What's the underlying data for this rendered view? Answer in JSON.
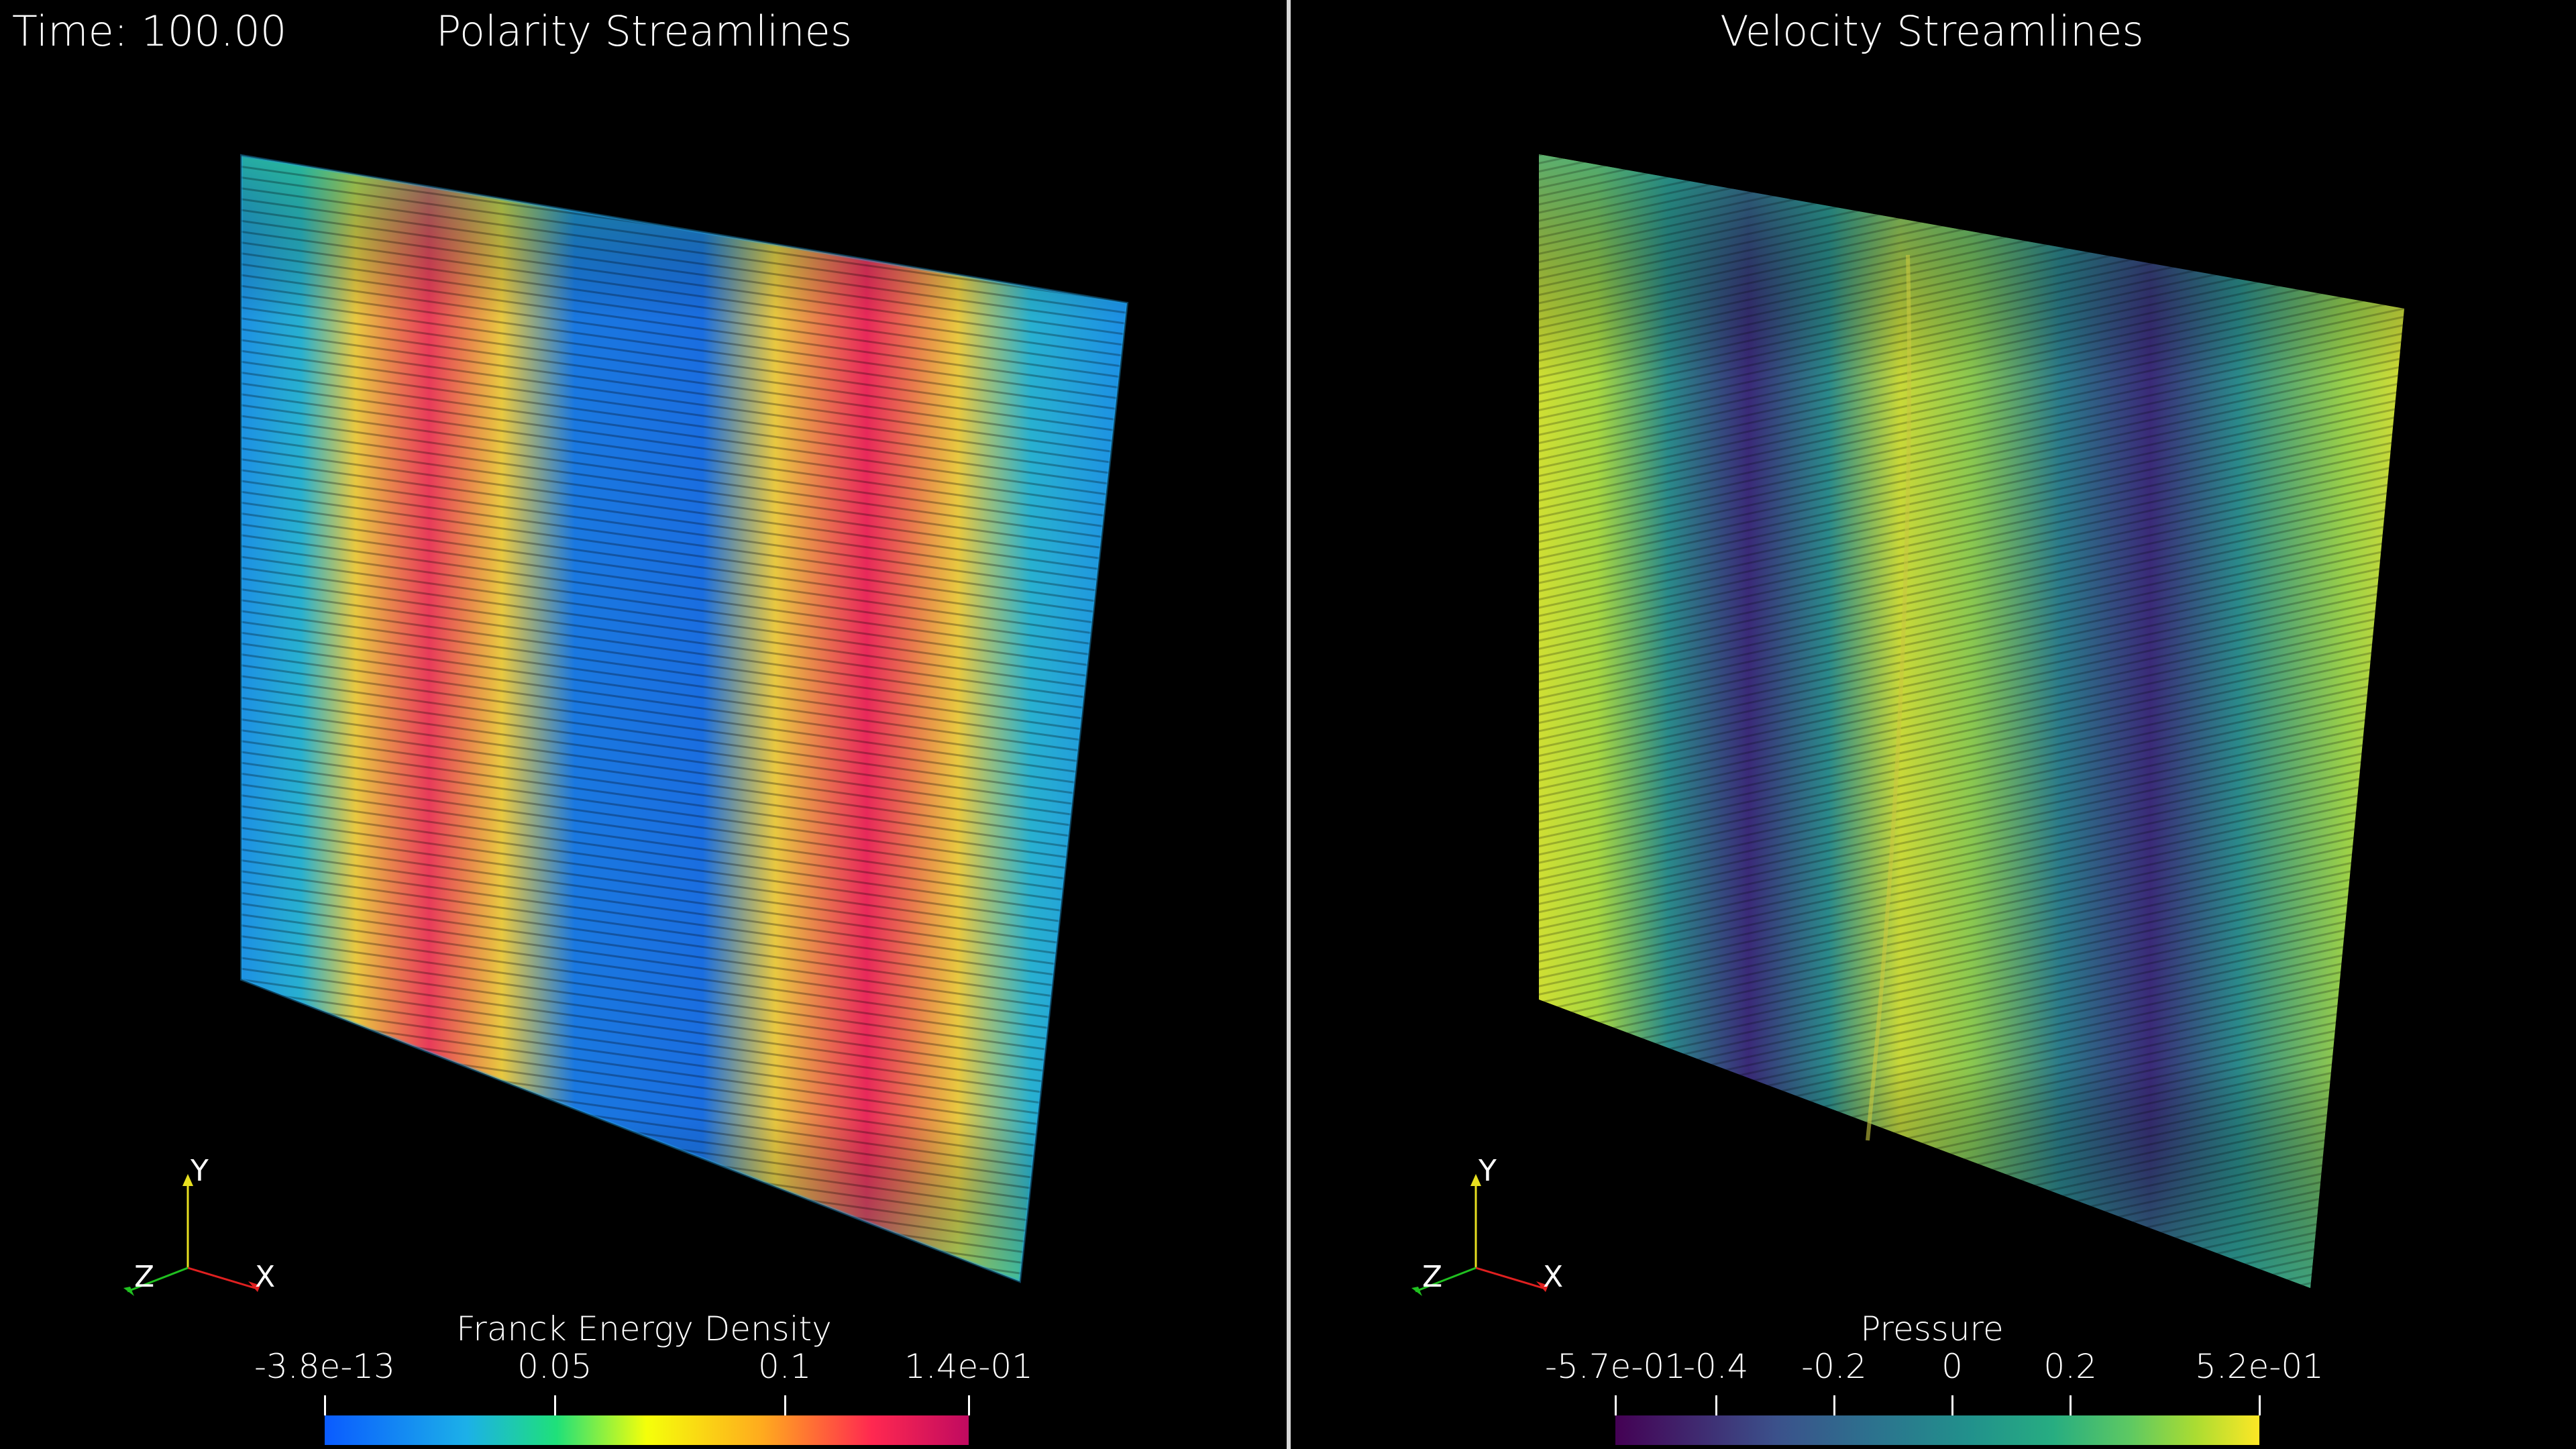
{
  "time_label": "Time: 100.00",
  "left_panel": {
    "title": "Polarity Streamlines",
    "colorbar": {
      "title": "Franck Energy Density",
      "ticks": [
        {
          "label": "-3.8e-13",
          "value": 0
        },
        {
          "label": "0.05",
          "value": 0.05
        },
        {
          "label": "0.1",
          "value": 0.1
        },
        {
          "label": "1.4e-01",
          "value": 0.14
        }
      ],
      "range": [
        0,
        0.14
      ],
      "colormap": [
        "#0a5bff",
        "#1cb0e8",
        "#1fe07a",
        "#f5ff0a",
        "#ffaa1e",
        "#ff2850",
        "#c00a60"
      ]
    },
    "axes": {
      "x": "X",
      "y": "Y",
      "z": "Z"
    }
  },
  "right_panel": {
    "title": "Velocity Streamlines",
    "colorbar": {
      "title": "Pressure",
      "ticks": [
        {
          "label": "-5.7e-01",
          "value": -0.57
        },
        {
          "label": "-0.4",
          "value": -0.4
        },
        {
          "label": "-0.2",
          "value": -0.2
        },
        {
          "label": "0",
          "value": 0
        },
        {
          "label": "0.2",
          "value": 0.2
        },
        {
          "label": "5.2e-01",
          "value": 0.52
        }
      ],
      "range": [
        -0.57,
        0.52
      ],
      "colormap": [
        "#440154",
        "#3b518b",
        "#2c728e",
        "#21918c",
        "#27ad81",
        "#5ec962",
        "#aadc32",
        "#fde725"
      ]
    },
    "axes": {
      "x": "X",
      "y": "Y",
      "z": "Z"
    }
  },
  "colors": {
    "background": "#000000",
    "divider": "#d8d8d8",
    "axis_x": "#e02020",
    "axis_y": "#e8e020",
    "axis_z": "#20c020"
  }
}
